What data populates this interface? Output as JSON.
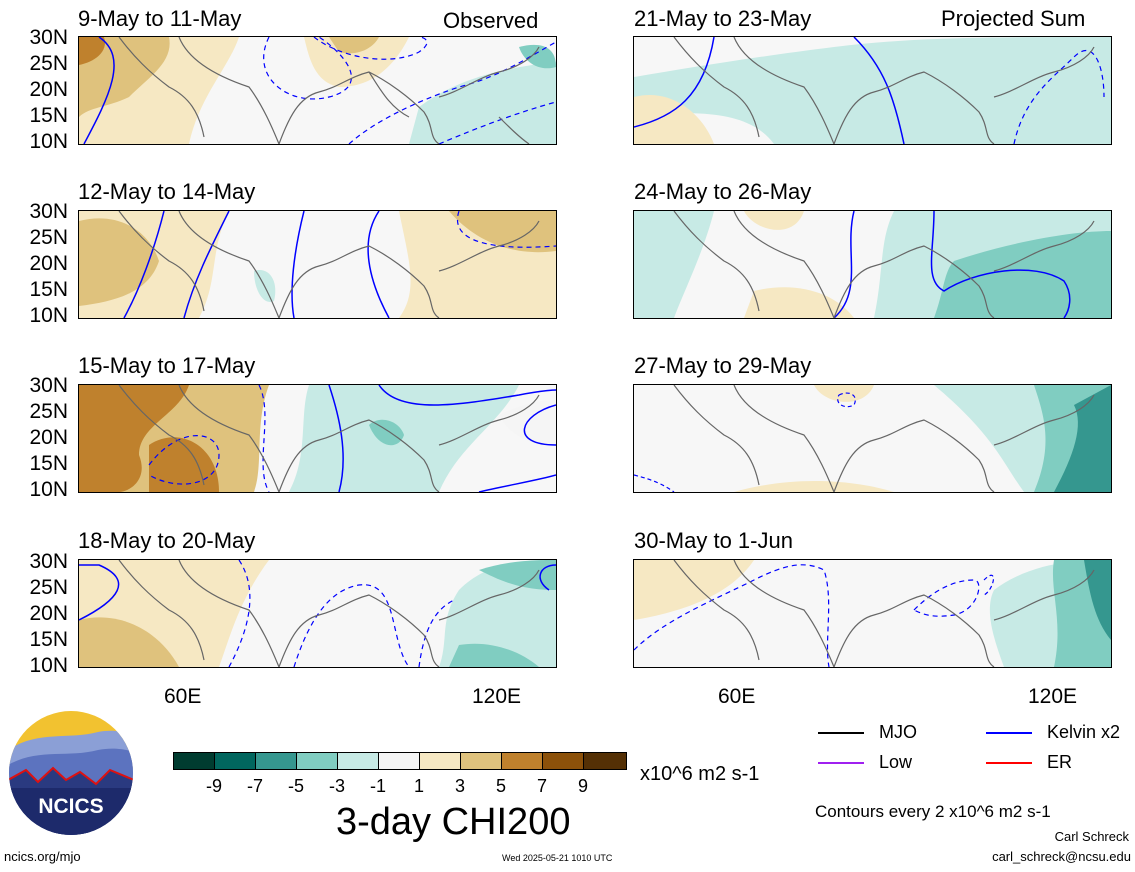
{
  "panels": [
    {
      "title": "9-May to 11-May",
      "tag": "Observed"
    },
    {
      "title": "12-May to 14-May",
      "tag": ""
    },
    {
      "title": "15-May to 17-May",
      "tag": ""
    },
    {
      "title": "18-May to 20-May",
      "tag": ""
    },
    {
      "title": "21-May to 23-May",
      "tag": "Projected Sum"
    },
    {
      "title": "24-May to 26-May",
      "tag": ""
    },
    {
      "title": "27-May to 29-May",
      "tag": ""
    },
    {
      "title": "30-May to 1-Jun",
      "tag": ""
    }
  ],
  "lat_labels": [
    "30N",
    "25N",
    "20N",
    "15N",
    "10N"
  ],
  "lon_labels": [
    "60E",
    "120E"
  ],
  "colorbar": {
    "colors": [
      "#003c30",
      "#01665e",
      "#35978f",
      "#80cdc1",
      "#c7eae5",
      "#f5f5f5",
      "#f6e8c3",
      "#dfc27d",
      "#bf812d",
      "#8c510a",
      "#543005"
    ],
    "tick_labels": [
      "-9",
      "-7",
      "-5",
      "-3",
      "-1",
      "1",
      "3",
      "5",
      "7",
      "9"
    ],
    "units": "x10^6 m2 s-1",
    "title": "3-day CHI200"
  },
  "legend": {
    "items": [
      {
        "label": "MJO",
        "color": "#000000"
      },
      {
        "label": "Kelvin x2",
        "color": "#0000ff"
      },
      {
        "label": "Low",
        "color": "#a020f0"
      },
      {
        "label": "ER",
        "color": "#ff0000"
      }
    ],
    "contour_note": "Contours every 2 x10^6 m2 s-1"
  },
  "logo": {
    "text": "NCICS"
  },
  "footer": {
    "url": "ncics.org/mjo",
    "timestamp": "Wed 2025-05-21 1010 UTC",
    "author": "Carl Schreck",
    "email": "carl_schreck@ncsu.edu"
  }
}
